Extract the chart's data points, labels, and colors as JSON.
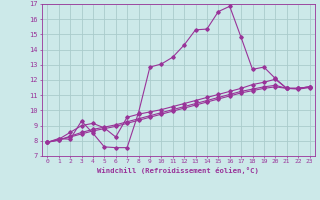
{
  "xlabel": "Windchill (Refroidissement éolien,°C)",
  "xlim": [
    -0.5,
    23.5
  ],
  "ylim": [
    7,
    17
  ],
  "xticks": [
    0,
    1,
    2,
    3,
    4,
    5,
    6,
    7,
    8,
    9,
    10,
    11,
    12,
    13,
    14,
    15,
    16,
    17,
    18,
    19,
    20,
    21,
    22,
    23
  ],
  "yticks": [
    7,
    8,
    9,
    10,
    11,
    12,
    13,
    14,
    15,
    16,
    17
  ],
  "background_color": "#cce9e9",
  "grid_color": "#aacccc",
  "line_color": "#993399",
  "line1_x": [
    0,
    1,
    2,
    3,
    4,
    5,
    6,
    7,
    8,
    9,
    10,
    11,
    12,
    13,
    14,
    15,
    16,
    17,
    18,
    19,
    20,
    21,
    22,
    23
  ],
  "line1_y": [
    7.9,
    8.15,
    8.1,
    9.3,
    8.5,
    7.6,
    7.55,
    7.55,
    9.85,
    12.85,
    13.05,
    13.5,
    14.3,
    15.3,
    15.35,
    16.5,
    16.85,
    14.8,
    12.7,
    12.85,
    12.1,
    11.45,
    11.4,
    11.5
  ],
  "line2_x": [
    0,
    1,
    2,
    3,
    4,
    5,
    6,
    7,
    8,
    9,
    10,
    11,
    12,
    13,
    14,
    15,
    16,
    17,
    18,
    19,
    20,
    21,
    22,
    23
  ],
  "line2_y": [
    7.9,
    8.1,
    8.55,
    9.0,
    9.15,
    8.85,
    8.25,
    9.55,
    9.75,
    9.9,
    10.05,
    10.25,
    10.45,
    10.65,
    10.85,
    11.05,
    11.25,
    11.45,
    11.7,
    11.85,
    12.05,
    11.45,
    11.45,
    11.55
  ],
  "line3_x": [
    0,
    1,
    2,
    3,
    4,
    5,
    6,
    7,
    8,
    9,
    10,
    11,
    12,
    13,
    14,
    15,
    16,
    17,
    18,
    19,
    20,
    21,
    22,
    23
  ],
  "line3_y": [
    7.9,
    8.05,
    8.3,
    8.55,
    8.75,
    8.9,
    9.05,
    9.25,
    9.45,
    9.65,
    9.85,
    10.05,
    10.25,
    10.45,
    10.65,
    10.85,
    11.05,
    11.25,
    11.4,
    11.55,
    11.65,
    11.45,
    11.45,
    11.55
  ],
  "line4_x": [
    0,
    1,
    2,
    3,
    4,
    5,
    6,
    7,
    8,
    9,
    10,
    11,
    12,
    13,
    14,
    15,
    16,
    17,
    18,
    19,
    20,
    21,
    22,
    23
  ],
  "line4_y": [
    7.9,
    8.05,
    8.25,
    8.45,
    8.65,
    8.8,
    8.95,
    9.15,
    9.35,
    9.55,
    9.75,
    9.95,
    10.15,
    10.35,
    10.55,
    10.75,
    10.95,
    11.15,
    11.3,
    11.45,
    11.55,
    11.45,
    11.45,
    11.55
  ]
}
